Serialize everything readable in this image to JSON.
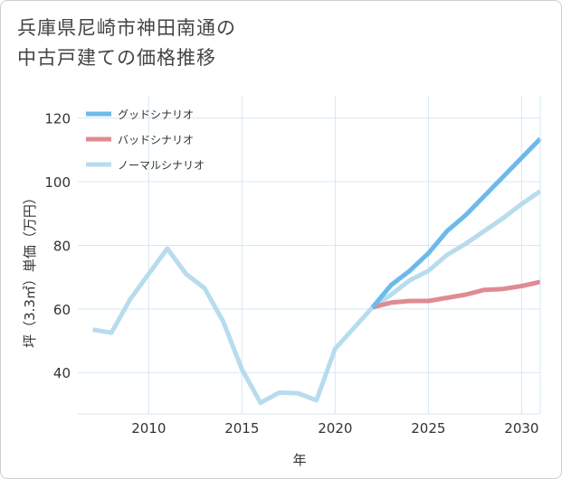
{
  "title_line1": "兵庫県尼崎市神田南通の",
  "title_line2": "中古戸建ての価格推移",
  "chart_data": {
    "type": "line",
    "xlabel": "年",
    "ylabel": "坪（3.3㎡）単価（万円）",
    "xlim": [
      2006.2,
      2031
    ],
    "ylim": [
      27,
      127
    ],
    "xticks": [
      2010,
      2015,
      2020,
      2025,
      2030
    ],
    "yticks": [
      40,
      60,
      80,
      100,
      120
    ],
    "grid": true,
    "legend_position": "top-left",
    "series": [
      {
        "name": "グッドシナリオ",
        "color": "#6cbaec",
        "x": [
          2022,
          2023,
          2024,
          2025,
          2026,
          2027,
          2028,
          2029,
          2030,
          2031
        ],
        "values": [
          60.5,
          67.5,
          72,
          77.5,
          84.5,
          89.5,
          95.5,
          101.5,
          107.5,
          113.5
        ]
      },
      {
        "name": "バッドシナリオ",
        "color": "#e08a92",
        "x": [
          2022,
          2023,
          2024,
          2025,
          2026,
          2027,
          2028,
          2029,
          2030,
          2031
        ],
        "values": [
          60.5,
          62,
          62.5,
          62.5,
          63.5,
          64.5,
          66,
          66.3,
          67.2,
          68.5
        ]
      },
      {
        "name": "ノーマルシナリオ",
        "color": "#b7dcee",
        "x": [
          2007,
          2008,
          2009,
          2010,
          2011,
          2012,
          2013,
          2014,
          2015,
          2016,
          2017,
          2018,
          2019,
          2020,
          2021,
          2022,
          2023,
          2024,
          2025,
          2026,
          2027,
          2028,
          2029,
          2030,
          2031
        ],
        "values": [
          53.5,
          52.5,
          63,
          71,
          79,
          71,
          66.5,
          56,
          41,
          30.5,
          33.7,
          33.5,
          31.3,
          47.5,
          54,
          60.5,
          64.5,
          69,
          72,
          77,
          80.5,
          84.5,
          88.5,
          93,
          97
        ]
      }
    ]
  }
}
